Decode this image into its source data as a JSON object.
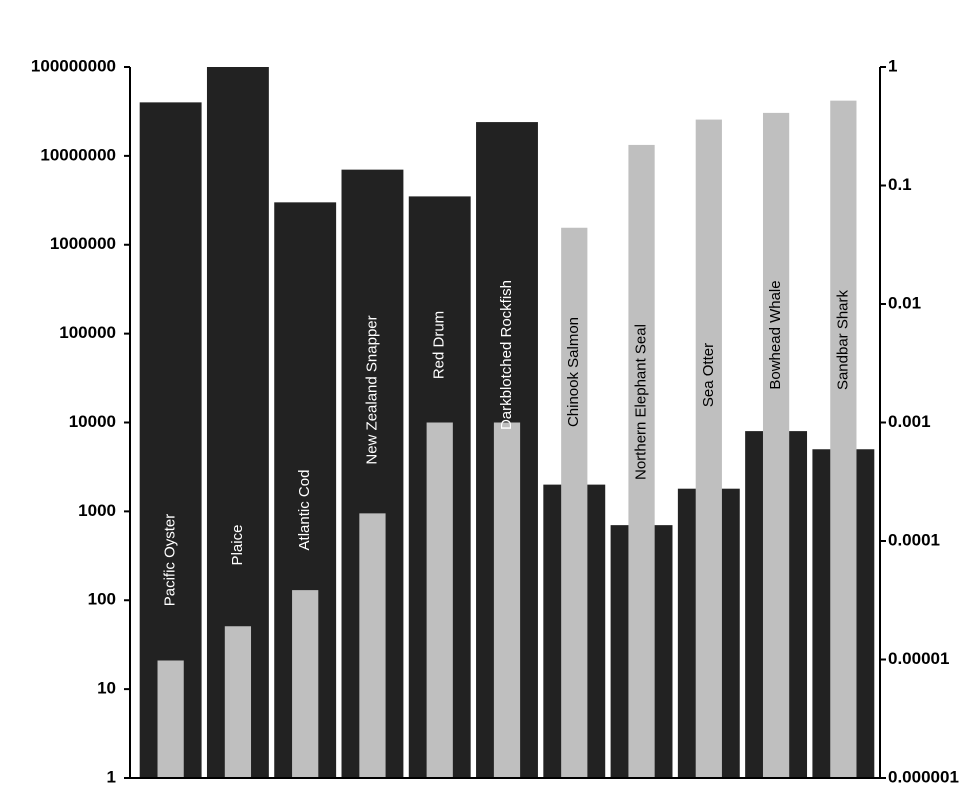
{
  "chart_data": {
    "type": "bar",
    "log_scale": true,
    "categories": [
      "Pacific Oyster",
      "Plaice",
      "Atlantic Cod",
      "New Zealand Snapper",
      "Red Drum",
      "Darkblotched Rockfish",
      "Chinook Salmon",
      "Northern Elephant Seal",
      "Sea Otter",
      "Bowhead Whale",
      "Sandbar Shark"
    ],
    "series": [
      {
        "color": "#222222",
        "values": [
          40000000,
          100000000,
          3000000,
          7000000,
          3500000,
          24000000,
          2000,
          700,
          1800,
          8000,
          5000
        ]
      },
      {
        "color": "#bfbfbf",
        "values": [
          21,
          51,
          130,
          950,
          10000,
          10000,
          null,
          null,
          null,
          null,
          null
        ]
      },
      {
        "color": "#bfbfbf",
        "axis": "y2",
        "values": [
          null,
          null,
          null,
          null,
          null,
          null,
          0.044,
          0.22,
          0.36,
          0.41,
          0.52
        ]
      }
    ],
    "ylim": [
      1,
      100000000
    ],
    "yticks": [
      1,
      10,
      100,
      1000,
      10000,
      100000,
      1000000,
      10000000,
      100000000
    ],
    "y2lim": [
      1e-06,
      1
    ],
    "y2ticks": [
      {
        "value": 1e-06,
        "label": "0.000001"
      },
      1e-05,
      0.0001,
      0.001,
      0.01,
      0.1,
      1
    ]
  }
}
